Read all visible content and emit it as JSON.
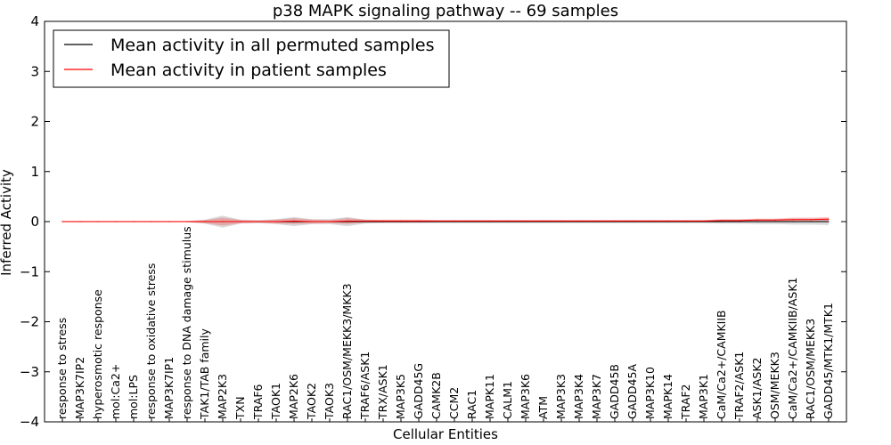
{
  "chart_data": {
    "type": "line",
    "title": "p38 MAPK signaling pathway -- 69 samples",
    "xlabel": "Cellular Entities",
    "ylabel": "Inferred Activity",
    "ylim": [
      -4,
      4
    ],
    "yticks": [
      "−4",
      "−3",
      "−2",
      "−1",
      "0",
      "1",
      "2",
      "3",
      "4"
    ],
    "grid": false,
    "legend_position": "top-left",
    "categories": [
      "response to stress",
      "MAP3K7IP2",
      "hyperosmotic response",
      "mol:Ca2+",
      "mol:LPS",
      "response to oxidative stress",
      "MAP3K7IP1",
      "response to DNA damage stimulus",
      "TAK1/TAB family",
      "MAP2K3",
      "TXN",
      "TRAF6",
      "TAOK1",
      "MAP2K6",
      "TAOK2",
      "TAOK3",
      "RAC1/OSM/MEKK3/MKK3",
      "TRAF6/ASK1",
      "TRX/ASK1",
      "MAP3K5",
      "GADD45G",
      "CAMK2B",
      "CCM2",
      "RAC1",
      "MAPK11",
      "CALM1",
      "MAP3K6",
      "ATM",
      "MAP3K3",
      "MAP3K4",
      "MAP3K7",
      "GADD45B",
      "GADD45A",
      "MAP3K10",
      "MAPK14",
      "TRAF2",
      "MAP3K1",
      "CaM/Ca2+/CAMKIIB",
      "TRAF2/ASK1",
      "ASK1/ASK2",
      "OSM/MEKK3",
      "CaM/Ca2+/CAMKIIB/ASK1",
      "RAC1/OSM/MEKK3",
      "GADD45/MTK1/MTK1"
    ],
    "series": [
      {
        "name": "Mean activity in all permuted samples",
        "color": "#000000",
        "values": [
          0,
          0,
          0,
          0,
          0,
          0,
          0,
          0,
          0,
          0,
          0,
          0,
          0,
          0,
          0,
          0,
          0,
          0,
          0,
          0,
          0,
          0,
          0,
          0,
          0,
          0,
          0,
          0,
          0,
          0,
          0,
          0,
          0,
          0,
          0,
          0,
          0,
          0,
          0,
          0,
          0,
          0,
          0,
          0
        ],
        "band": [
          0.01,
          0.01,
          0.01,
          0.01,
          0.01,
          0.01,
          0.01,
          0.01,
          0.04,
          0.12,
          0.04,
          0.03,
          0.05,
          0.09,
          0.05,
          0.05,
          0.09,
          0.04,
          0.03,
          0.03,
          0.03,
          0.03,
          0.03,
          0.03,
          0.03,
          0.03,
          0.03,
          0.03,
          0.03,
          0.03,
          0.03,
          0.03,
          0.03,
          0.03,
          0.03,
          0.03,
          0.03,
          0.04,
          0.04,
          0.05,
          0.05,
          0.06,
          0.06,
          0.07
        ]
      },
      {
        "name": "Mean activity in patient samples",
        "color": "#ff0000",
        "values": [
          0,
          0,
          0,
          0,
          0,
          0,
          0,
          0,
          0,
          0,
          0,
          0,
          0,
          0.01,
          0,
          0,
          0.01,
          0.01,
          0.01,
          0.01,
          0.01,
          0.01,
          0.01,
          0.01,
          0.01,
          0.01,
          0.01,
          0.01,
          0.01,
          0.01,
          0.01,
          0.01,
          0.01,
          0.01,
          0.01,
          0.01,
          0.01,
          0.02,
          0.02,
          0.03,
          0.03,
          0.04,
          0.04,
          0.05
        ],
        "band": [
          0.01,
          0.01,
          0.01,
          0.01,
          0.01,
          0.01,
          0.01,
          0.01,
          0.03,
          0.08,
          0.03,
          0.02,
          0.04,
          0.06,
          0.04,
          0.03,
          0.06,
          0.03,
          0.03,
          0.03,
          0.03,
          0.02,
          0.02,
          0.02,
          0.02,
          0.02,
          0.02,
          0.02,
          0.02,
          0.02,
          0.02,
          0.02,
          0.02,
          0.02,
          0.02,
          0.02,
          0.02,
          0.03,
          0.03,
          0.03,
          0.03,
          0.04,
          0.04,
          0.04
        ]
      }
    ]
  }
}
